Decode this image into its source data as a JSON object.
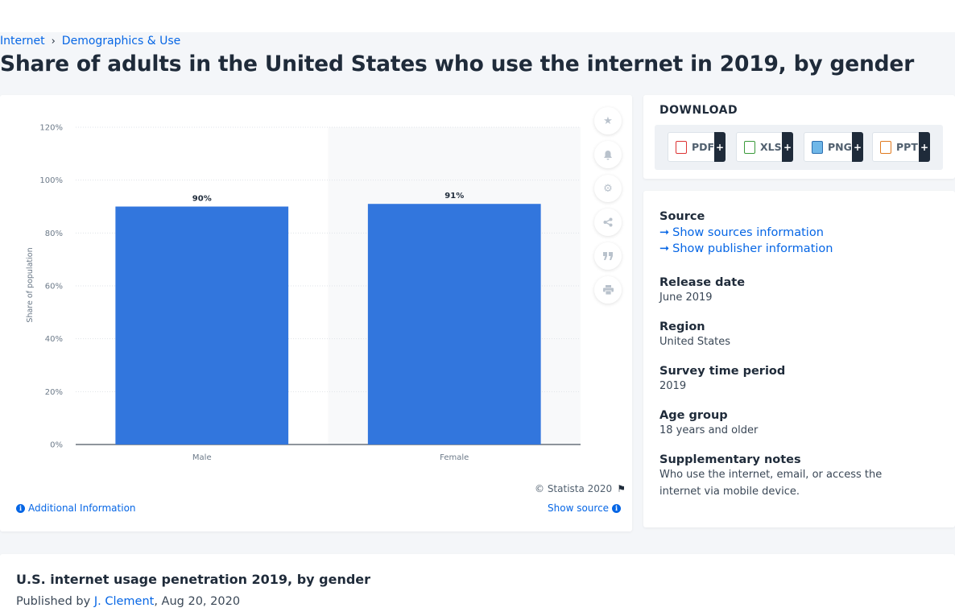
{
  "breadcrumb": {
    "item1": "Internet",
    "item2": "Demographics & Use"
  },
  "page_title": "Share of adults in the United States who use the internet in 2019, by gender",
  "chart_data": {
    "type": "bar",
    "categories": [
      "Male",
      "Female"
    ],
    "values": [
      90,
      91
    ],
    "data_labels": [
      "90%",
      "91%"
    ],
    "ylabel": "Share of population",
    "xlabel": "",
    "ylim": [
      0,
      120
    ],
    "yticks": [
      "0%",
      "20%",
      "40%",
      "60%",
      "80%",
      "100%",
      "120%"
    ],
    "bar_color": "#3276dd",
    "grid": true
  },
  "chart_footer": {
    "copyright": "© Statista 2020",
    "additional": "Additional Information",
    "show_source": "Show source"
  },
  "download": {
    "heading": "DOWNLOAD",
    "buttons": [
      "PDF",
      "XLS",
      "PNG",
      "PPT"
    ],
    "plus": "+"
  },
  "info": {
    "source_label": "Source",
    "show_sources": "Show sources information",
    "show_publisher": "Show publisher information",
    "release_label": "Release date",
    "release_value": "June 2019",
    "region_label": "Region",
    "region_value": "United States",
    "survey_label": "Survey time period",
    "survey_value": "2019",
    "age_label": "Age group",
    "age_value": "18 years and older",
    "notes_label": "Supplementary notes",
    "notes_value": "Who use the internet, email, or access the internet via mobile device."
  },
  "bottom": {
    "title": "U.S. internet usage penetration 2019, by gender",
    "published_by": "Published by",
    "author": "J. Clement",
    "date": ", Aug 20, 2020"
  },
  "colors": {
    "accent": "#0666e5",
    "bar": "#3276dd",
    "text": "#1f2b3a"
  }
}
